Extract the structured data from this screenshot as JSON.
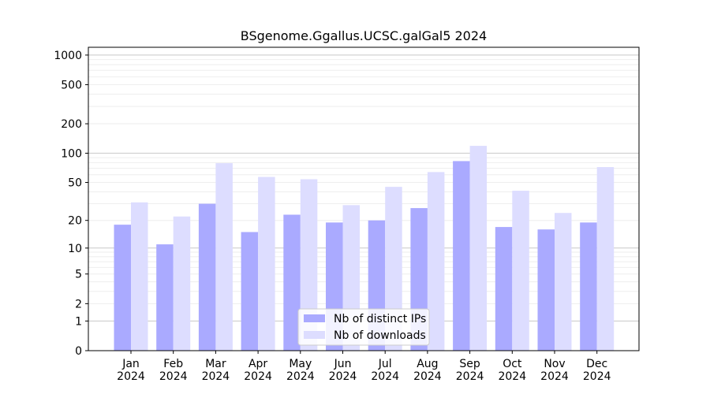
{
  "chart_data": {
    "type": "bar",
    "title": "BSgenome.Ggallus.UCSC.galGal5 2024",
    "xlabel": "",
    "ylabel": "",
    "yscale": "log1p",
    "ylim": [
      0,
      1200
    ],
    "yticks": [
      0,
      1,
      2,
      5,
      10,
      20,
      50,
      100,
      200,
      500,
      1000
    ],
    "grid": "horizontal",
    "legend_position": "bottom-center",
    "categories": [
      [
        "Jan",
        "2024"
      ],
      [
        "Feb",
        "2024"
      ],
      [
        "Mar",
        "2024"
      ],
      [
        "Apr",
        "2024"
      ],
      [
        "May",
        "2024"
      ],
      [
        "Jun",
        "2024"
      ],
      [
        "Jul",
        "2024"
      ],
      [
        "Aug",
        "2024"
      ],
      [
        "Sep",
        "2024"
      ],
      [
        "Oct",
        "2024"
      ],
      [
        "Nov",
        "2024"
      ],
      [
        "Dec",
        "2024"
      ]
    ],
    "series": [
      {
        "name": "Nb of distinct IPs",
        "color": "#aaaaff",
        "values": [
          18,
          11,
          30,
          15,
          23,
          19,
          20,
          27,
          83,
          17,
          16,
          19
        ]
      },
      {
        "name": "Nb of downloads",
        "color": "#ddddff",
        "values": [
          31,
          22,
          79,
          57,
          54,
          29,
          45,
          64,
          119,
          41,
          24,
          72
        ]
      }
    ]
  }
}
